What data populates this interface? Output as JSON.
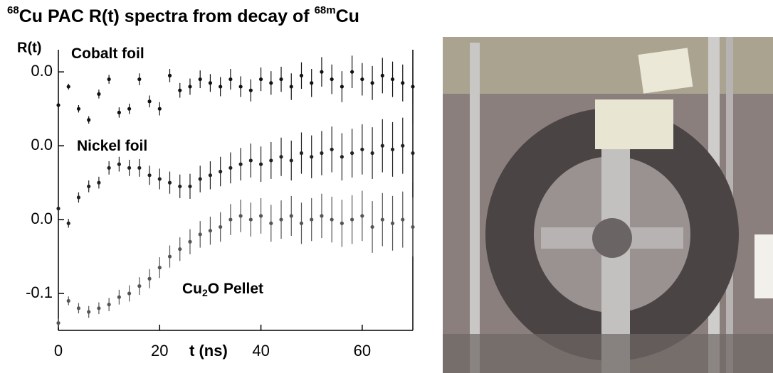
{
  "chart_data": {
    "type": "scatter",
    "title": [
      {
        "text": "68",
        "sup": true
      },
      {
        "text": "Cu PAC R(t) spectra from decay of ",
        "sup": false
      },
      {
        "text": "68m",
        "sup": true
      },
      {
        "text": "Cu",
        "sup": false
      }
    ],
    "ylabel": "R(t)",
    "xlabel": "t (ns)",
    "xlim": [
      0,
      70
    ],
    "ylim": [
      -0.15,
      0.23
    ],
    "xticks": [
      0,
      20,
      40,
      60
    ],
    "yticks": [
      {
        "value": 0.2,
        "label": "0.0"
      },
      {
        "value": 0.1,
        "label": "0.0"
      },
      {
        "value": 0.0,
        "label": "0.0"
      },
      -0.1
    ],
    "x": [
      0,
      2,
      4,
      6,
      8,
      10,
      12,
      14,
      16,
      18,
      20,
      22,
      24,
      26,
      28,
      30,
      32,
      34,
      36,
      38,
      40,
      42,
      44,
      46,
      48,
      50,
      52,
      54,
      56,
      58,
      60,
      62,
      64,
      66,
      68,
      70
    ],
    "annotations": [
      [
        {
          "text": "Cobalt foil",
          "sub": false
        }
      ],
      [
        {
          "text": "Nickel foil",
          "sub": false
        }
      ],
      [
        {
          "text": "Cu",
          "sub": false
        },
        {
          "text": "2",
          "sub": true
        },
        {
          "text": "O Pellet",
          "sub": false
        }
      ]
    ],
    "series": [
      {
        "color": "#111111",
        "values": [
          0.155,
          0.18,
          0.15,
          0.135,
          0.17,
          0.19,
          0.145,
          0.15,
          0.19,
          0.16,
          0.15,
          0.195,
          0.175,
          0.18,
          0.19,
          0.185,
          0.18,
          0.19,
          0.18,
          0.175,
          0.19,
          0.185,
          0.19,
          0.18,
          0.195,
          0.185,
          0.2,
          0.19,
          0.18,
          0.2,
          0.19,
          0.185,
          0.195,
          0.19,
          0.185,
          0.18
        ],
        "errors": [
          0.004,
          0.004,
          0.005,
          0.005,
          0.006,
          0.006,
          0.007,
          0.007,
          0.008,
          0.008,
          0.009,
          0.009,
          0.01,
          0.011,
          0.012,
          0.012,
          0.013,
          0.014,
          0.014,
          0.015,
          0.016,
          0.016,
          0.017,
          0.018,
          0.018,
          0.019,
          0.02,
          0.02,
          0.021,
          0.022,
          0.022,
          0.023,
          0.024,
          0.024,
          0.025,
          0.025
        ]
      },
      {
        "color": "#222222",
        "values": [
          0.015,
          -0.005,
          0.03,
          0.045,
          0.05,
          0.07,
          0.075,
          0.07,
          0.07,
          0.06,
          0.055,
          0.05,
          0.045,
          0.045,
          0.055,
          0.06,
          0.065,
          0.07,
          0.075,
          0.08,
          0.075,
          0.08,
          0.085,
          0.08,
          0.09,
          0.085,
          0.09,
          0.095,
          0.085,
          0.09,
          0.095,
          0.09,
          0.1,
          0.095,
          0.1,
          0.09
        ],
        "errors": [
          0.006,
          0.006,
          0.007,
          0.008,
          0.008,
          0.009,
          0.01,
          0.011,
          0.012,
          0.013,
          0.014,
          0.015,
          0.016,
          0.017,
          0.018,
          0.019,
          0.02,
          0.021,
          0.022,
          0.023,
          0.024,
          0.025,
          0.026,
          0.027,
          0.028,
          0.029,
          0.03,
          0.031,
          0.032,
          0.033,
          0.034,
          0.035,
          0.036,
          0.037,
          0.038,
          0.04
        ]
      },
      {
        "color": "#555555",
        "values": [
          -0.14,
          -0.11,
          -0.12,
          -0.125,
          -0.12,
          -0.115,
          -0.105,
          -0.1,
          -0.09,
          -0.08,
          -0.065,
          -0.05,
          -0.04,
          -0.03,
          -0.02,
          -0.015,
          -0.01,
          0.0,
          0.005,
          0.0,
          0.005,
          -0.005,
          0.0,
          0.005,
          -0.005,
          0.0,
          0.005,
          0.0,
          -0.005,
          0.0,
          0.005,
          -0.01,
          0.0,
          -0.005,
          0.0,
          -0.01
        ],
        "errors": [
          0.006,
          0.006,
          0.007,
          0.008,
          0.008,
          0.009,
          0.01,
          0.011,
          0.012,
          0.013,
          0.014,
          0.015,
          0.016,
          0.017,
          0.018,
          0.019,
          0.02,
          0.021,
          0.022,
          0.023,
          0.024,
          0.025,
          0.026,
          0.027,
          0.028,
          0.029,
          0.03,
          0.031,
          0.032,
          0.033,
          0.034,
          0.035,
          0.036,
          0.037,
          0.038,
          0.04
        ]
      }
    ]
  }
}
